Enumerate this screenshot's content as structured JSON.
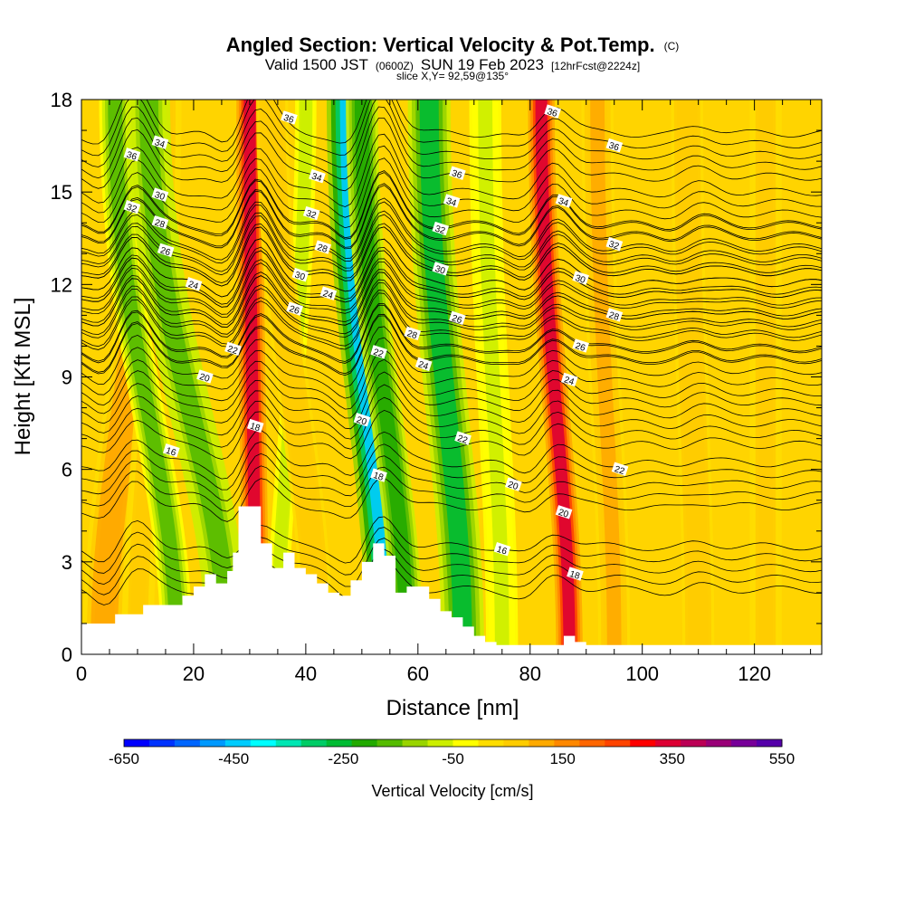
{
  "title": {
    "main": "Angled Section: Vertical Velocity & Pot.Temp.",
    "main_unit": "(C)",
    "valid_prefix": "Valid 1500 JST",
    "valid_z": "(0600Z)",
    "valid_date": "SUN 19 Feb 2023",
    "valid_fcst": "[12hrFcst@2224z]",
    "slice": "slice X,Y= 92,59@135°"
  },
  "chart_data": {
    "type": "heatmap",
    "xlabel": "Distance [nm]",
    "ylabel": "Height [Kft MSL]",
    "xlim": [
      0,
      132
    ],
    "ylim": [
      0,
      18
    ],
    "x_ticks": [
      0,
      20,
      40,
      60,
      80,
      100,
      120
    ],
    "y_ticks": [
      0,
      3,
      6,
      9,
      12,
      15,
      18
    ],
    "colorbar": {
      "label": "Vertical Velocity [cm/s]",
      "range": [
        -650,
        550
      ],
      "tick_labels": [
        -650,
        -450,
        -250,
        -50,
        150,
        350,
        550
      ],
      "colors": [
        "#0000ff",
        "#0033ff",
        "#0066ff",
        "#0099ff",
        "#00ccff",
        "#00ffff",
        "#00e6b3",
        "#00cc66",
        "#00bb33",
        "#22aa00",
        "#55bb00",
        "#99d400",
        "#ccee00",
        "#ffff00",
        "#ffdd00",
        "#ffcc00",
        "#ffaa00",
        "#ff8800",
        "#ff6600",
        "#ff4400",
        "#ff0000",
        "#dd0033",
        "#bb0055",
        "#990077",
        "#770099",
        "#5500aa"
      ]
    },
    "velocity_bands": [
      {
        "x_base": 4,
        "x_top": 12,
        "width": 4,
        "w": 120
      },
      {
        "x_base": 10,
        "x_top": 15,
        "width": 3,
        "w": 60
      },
      {
        "x_base": 17,
        "x_top": 6,
        "width": 3,
        "w": -150
      },
      {
        "x_base": 26,
        "x_top": 12,
        "width": 4,
        "w": -180
      },
      {
        "x_base": 31,
        "x_top": 30,
        "width": 2.5,
        "w": 330
      },
      {
        "x_base": 35,
        "x_top": 40,
        "width": 2,
        "w": -90
      },
      {
        "x_base": 42,
        "x_top": 34,
        "width": 3,
        "w": 80
      },
      {
        "x_base": 55,
        "x_top": 48,
        "width": 4.5,
        "w": -420
      },
      {
        "x_base": 58,
        "x_top": 50,
        "width": 3,
        "w": -220
      },
      {
        "x_base": 68,
        "x_top": 62,
        "width": 4,
        "w": -240
      },
      {
        "x_base": 75,
        "x_top": 72,
        "width": 3,
        "w": -60
      },
      {
        "x_base": 87,
        "x_top": 82,
        "width": 2.5,
        "w": 320
      },
      {
        "x_base": 95,
        "x_top": 92,
        "width": 3,
        "w": 90
      },
      {
        "x_base": 110,
        "x_top": 108,
        "width": 3,
        "w": 80
      },
      {
        "x_base": 122,
        "x_top": 122,
        "width": 3,
        "w": 70
      }
    ],
    "terrain": [
      [
        0,
        1.0
      ],
      [
        5,
        1.0
      ],
      [
        6,
        1.3
      ],
      [
        10,
        1.3
      ],
      [
        11,
        1.6
      ],
      [
        17,
        1.6
      ],
      [
        18,
        1.9
      ],
      [
        20,
        2.2
      ],
      [
        22,
        2.6
      ],
      [
        24,
        2.3
      ],
      [
        26,
        2.7
      ],
      [
        27,
        3.3
      ],
      [
        28,
        4.8
      ],
      [
        31,
        4.8
      ],
      [
        32,
        3.6
      ],
      [
        34,
        2.8
      ],
      [
        36,
        3.3
      ],
      [
        38,
        2.8
      ],
      [
        40,
        2.6
      ],
      [
        42,
        2.3
      ],
      [
        44,
        2.0
      ],
      [
        46,
        1.9
      ],
      [
        48,
        2.4
      ],
      [
        50,
        3.0
      ],
      [
        52,
        3.6
      ],
      [
        54,
        3.2
      ],
      [
        56,
        2.0
      ],
      [
        58,
        2.2
      ],
      [
        60,
        2.2
      ],
      [
        62,
        1.8
      ],
      [
        64,
        1.4
      ],
      [
        66,
        1.2
      ],
      [
        68,
        0.9
      ],
      [
        70,
        0.6
      ],
      [
        72,
        0.4
      ],
      [
        74,
        0.3
      ],
      [
        84,
        0.3
      ],
      [
        86,
        0.6
      ],
      [
        88,
        0.4
      ],
      [
        90,
        0.3
      ],
      [
        132,
        0.3
      ]
    ],
    "isentropes": [
      {
        "theta": 16,
        "base_height": 2.8
      },
      {
        "theta": 18,
        "base_height": 5.5
      },
      {
        "theta": 20,
        "base_height": 7.5
      },
      {
        "theta": 22,
        "base_height": 9.2
      },
      {
        "theta": 24,
        "base_height": 10.3
      },
      {
        "theta": 26,
        "base_height": 11.1
      },
      {
        "theta": 28,
        "base_height": 11.7
      },
      {
        "theta": 30,
        "base_height": 12.4
      },
      {
        "theta": 32,
        "base_height": 13.2
      },
      {
        "theta": 34,
        "base_height": 14.3
      },
      {
        "theta": 36,
        "base_height": 16.2
      }
    ],
    "contour_labels": [
      {
        "text": "36",
        "x": 9,
        "y": 16.2
      },
      {
        "text": "34",
        "x": 14,
        "y": 16.6
      },
      {
        "text": "30",
        "x": 14,
        "y": 14.9
      },
      {
        "text": "32",
        "x": 9,
        "y": 14.5
      },
      {
        "text": "28",
        "x": 14,
        "y": 14.0
      },
      {
        "text": "26",
        "x": 15,
        "y": 13.1
      },
      {
        "text": "24",
        "x": 20,
        "y": 12.0
      },
      {
        "text": "22",
        "x": 27,
        "y": 9.9
      },
      {
        "text": "20",
        "x": 22,
        "y": 9.0
      },
      {
        "text": "18",
        "x": 31,
        "y": 7.4
      },
      {
        "text": "16",
        "x": 16,
        "y": 6.6
      },
      {
        "text": "36",
        "x": 37,
        "y": 17.4
      },
      {
        "text": "34",
        "x": 42,
        "y": 15.5
      },
      {
        "text": "32",
        "x": 41,
        "y": 14.3
      },
      {
        "text": "28",
        "x": 43,
        "y": 13.2
      },
      {
        "text": "30",
        "x": 39,
        "y": 12.3
      },
      {
        "text": "24",
        "x": 44,
        "y": 11.7
      },
      {
        "text": "26",
        "x": 38,
        "y": 11.2
      },
      {
        "text": "22",
        "x": 53,
        "y": 9.8
      },
      {
        "text": "20",
        "x": 50,
        "y": 7.6
      },
      {
        "text": "18",
        "x": 53,
        "y": 5.8
      },
      {
        "text": "36",
        "x": 67,
        "y": 15.6
      },
      {
        "text": "34",
        "x": 66,
        "y": 14.7
      },
      {
        "text": "32",
        "x": 64,
        "y": 13.8
      },
      {
        "text": "30",
        "x": 64,
        "y": 12.5
      },
      {
        "text": "28",
        "x": 59,
        "y": 10.4
      },
      {
        "text": "26",
        "x": 67,
        "y": 10.9
      },
      {
        "text": "24",
        "x": 61,
        "y": 9.4
      },
      {
        "text": "22",
        "x": 68,
        "y": 7.0
      },
      {
        "text": "20",
        "x": 77,
        "y": 5.5
      },
      {
        "text": "16",
        "x": 75,
        "y": 3.4
      },
      {
        "text": "36",
        "x": 84,
        "y": 17.6
      },
      {
        "text": "36",
        "x": 95,
        "y": 16.5
      },
      {
        "text": "34",
        "x": 86,
        "y": 14.7
      },
      {
        "text": "32",
        "x": 95,
        "y": 13.3
      },
      {
        "text": "30",
        "x": 89,
        "y": 12.2
      },
      {
        "text": "28",
        "x": 95,
        "y": 11.0
      },
      {
        "text": "26",
        "x": 89,
        "y": 10.0
      },
      {
        "text": "24",
        "x": 87,
        "y": 8.9
      },
      {
        "text": "22",
        "x": 96,
        "y": 6.0
      },
      {
        "text": "20",
        "x": 86,
        "y": 4.6
      },
      {
        "text": "18",
        "x": 88,
        "y": 2.6
      }
    ]
  }
}
